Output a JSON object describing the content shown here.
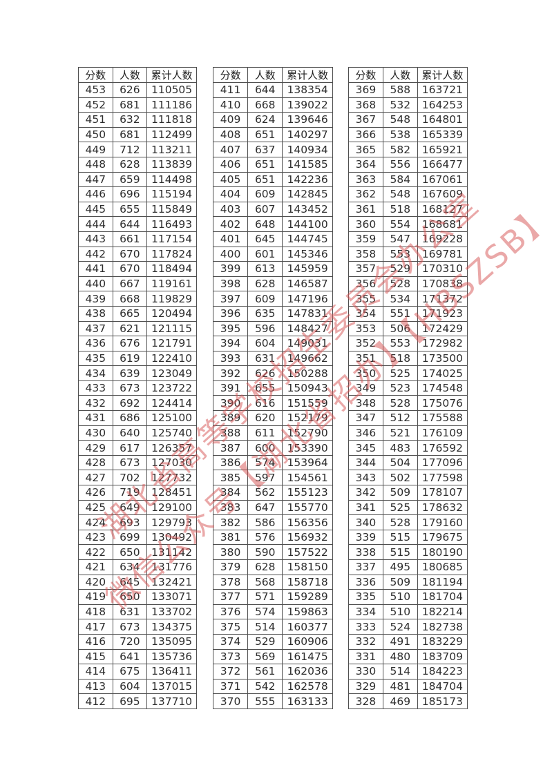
{
  "columns": [
    "分数",
    "人数",
    "累计人数"
  ],
  "column_keys": [
    "score",
    "count",
    "cumulative"
  ],
  "tables": [
    {
      "rows": [
        [
          453,
          626,
          110505
        ],
        [
          452,
          681,
          111186
        ],
        [
          451,
          632,
          111818
        ],
        [
          450,
          681,
          112499
        ],
        [
          449,
          712,
          113211
        ],
        [
          448,
          628,
          113839
        ],
        [
          447,
          659,
          114498
        ],
        [
          446,
          696,
          115194
        ],
        [
          445,
          655,
          115849
        ],
        [
          444,
          644,
          116493
        ],
        [
          443,
          661,
          117154
        ],
        [
          442,
          670,
          117824
        ],
        [
          441,
          670,
          118494
        ],
        [
          440,
          667,
          119161
        ],
        [
          439,
          668,
          119829
        ],
        [
          438,
          665,
          120494
        ],
        [
          437,
          621,
          121115
        ],
        [
          436,
          676,
          121791
        ],
        [
          435,
          619,
          122410
        ],
        [
          434,
          639,
          123049
        ],
        [
          433,
          673,
          123722
        ],
        [
          432,
          692,
          124414
        ],
        [
          431,
          686,
          125100
        ],
        [
          430,
          640,
          125740
        ],
        [
          429,
          617,
          126357
        ],
        [
          428,
          673,
          127030
        ],
        [
          427,
          702,
          127732
        ],
        [
          426,
          719,
          128451
        ],
        [
          425,
          649,
          129100
        ],
        [
          424,
          693,
          129793
        ],
        [
          423,
          699,
          130492
        ],
        [
          422,
          650,
          131142
        ],
        [
          421,
          634,
          131776
        ],
        [
          420,
          645,
          132421
        ],
        [
          419,
          650,
          133071
        ],
        [
          418,
          631,
          133702
        ],
        [
          417,
          673,
          134375
        ],
        [
          416,
          720,
          135095
        ],
        [
          415,
          641,
          135736
        ],
        [
          414,
          675,
          136411
        ],
        [
          413,
          604,
          137015
        ],
        [
          412,
          695,
          137710
        ]
      ]
    },
    {
      "rows": [
        [
          411,
          644,
          138354
        ],
        [
          410,
          668,
          139022
        ],
        [
          409,
          624,
          139646
        ],
        [
          408,
          651,
          140297
        ],
        [
          407,
          637,
          140934
        ],
        [
          406,
          651,
          141585
        ],
        [
          405,
          651,
          142236
        ],
        [
          404,
          609,
          142845
        ],
        [
          403,
          607,
          143452
        ],
        [
          402,
          648,
          144100
        ],
        [
          401,
          645,
          144745
        ],
        [
          400,
          601,
          145346
        ],
        [
          399,
          613,
          145959
        ],
        [
          398,
          628,
          146587
        ],
        [
          397,
          609,
          147196
        ],
        [
          396,
          635,
          147831
        ],
        [
          395,
          596,
          148427
        ],
        [
          394,
          604,
          149031
        ],
        [
          393,
          631,
          149662
        ],
        [
          392,
          626,
          150288
        ],
        [
          391,
          655,
          150943
        ],
        [
          390,
          616,
          151559
        ],
        [
          389,
          620,
          152179
        ],
        [
          388,
          611,
          152790
        ],
        [
          387,
          600,
          153390
        ],
        [
          386,
          574,
          153964
        ],
        [
          385,
          597,
          154561
        ],
        [
          384,
          562,
          155123
        ],
        [
          383,
          647,
          155770
        ],
        [
          382,
          586,
          156356
        ],
        [
          381,
          576,
          156932
        ],
        [
          380,
          590,
          157522
        ],
        [
          379,
          628,
          158150
        ],
        [
          378,
          568,
          158718
        ],
        [
          377,
          571,
          159289
        ],
        [
          376,
          574,
          159863
        ],
        [
          375,
          514,
          160377
        ],
        [
          374,
          529,
          160906
        ],
        [
          373,
          569,
          161475
        ],
        [
          372,
          561,
          162036
        ],
        [
          371,
          542,
          162578
        ],
        [
          370,
          555,
          163133
        ]
      ]
    },
    {
      "rows": [
        [
          369,
          588,
          163721
        ],
        [
          368,
          532,
          164253
        ],
        [
          367,
          548,
          164801
        ],
        [
          366,
          538,
          165339
        ],
        [
          365,
          582,
          165921
        ],
        [
          364,
          556,
          166477
        ],
        [
          363,
          584,
          167061
        ],
        [
          362,
          548,
          167609
        ],
        [
          361,
          518,
          168127
        ],
        [
          360,
          554,
          168681
        ],
        [
          359,
          547,
          169228
        ],
        [
          358,
          553,
          169781
        ],
        [
          357,
          529,
          170310
        ],
        [
          356,
          528,
          170838
        ],
        [
          355,
          534,
          171372
        ],
        [
          354,
          551,
          171923
        ],
        [
          353,
          506,
          172429
        ],
        [
          352,
          553,
          172982
        ],
        [
          351,
          518,
          173500
        ],
        [
          350,
          525,
          174025
        ],
        [
          349,
          523,
          174548
        ],
        [
          348,
          528,
          175076
        ],
        [
          347,
          512,
          175588
        ],
        [
          346,
          521,
          176109
        ],
        [
          345,
          483,
          176592
        ],
        [
          344,
          504,
          177096
        ],
        [
          343,
          502,
          177598
        ],
        [
          342,
          509,
          178107
        ],
        [
          341,
          525,
          178632
        ],
        [
          340,
          528,
          179160
        ],
        [
          339,
          515,
          179675
        ],
        [
          338,
          515,
          180190
        ],
        [
          337,
          495,
          180685
        ],
        [
          336,
          509,
          181194
        ],
        [
          335,
          510,
          181704
        ],
        [
          334,
          510,
          182214
        ],
        [
          333,
          524,
          182738
        ],
        [
          332,
          491,
          183229
        ],
        [
          331,
          480,
          183709
        ],
        [
          330,
          514,
          184223
        ],
        [
          329,
          481,
          184704
        ],
        [
          328,
          469,
          185173
        ]
      ]
    }
  ],
  "watermark": {
    "line1": "湖北省高等学校招生委员会办公室",
    "line2": "微信公众号【湖北省招办】【HBSZSB】",
    "color": "#d65252"
  }
}
